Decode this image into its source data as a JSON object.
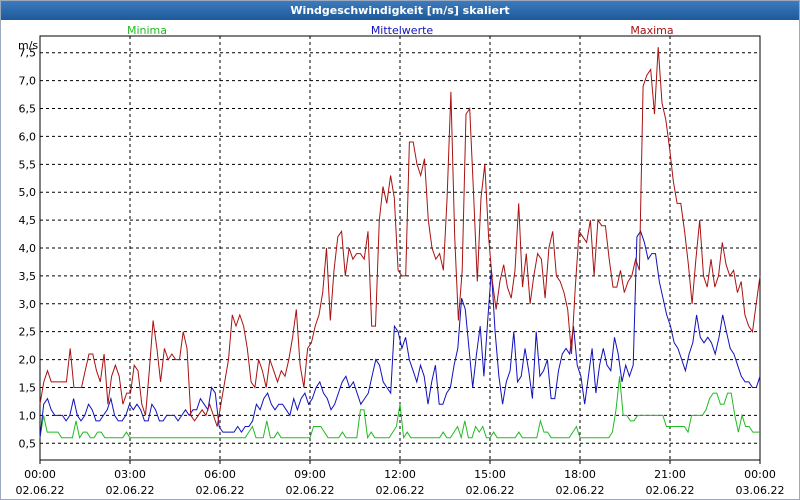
{
  "window": {
    "title": "Windgeschwindigkeit [m/s] skaliert"
  },
  "chart_data": {
    "type": "line",
    "title": "Windgeschwindigkeit [m/s] skaliert",
    "ylabel": "m/s",
    "xlabel": "",
    "ylim": [
      0.2,
      7.8
    ],
    "y_ticks": [
      {
        "v": 0.5,
        "label": "0,5"
      },
      {
        "v": 1.0,
        "label": "1,0"
      },
      {
        "v": 1.5,
        "label": "1,5"
      },
      {
        "v": 2.0,
        "label": "2,0"
      },
      {
        "v": 2.5,
        "label": "2,5"
      },
      {
        "v": 3.0,
        "label": "3,0"
      },
      {
        "v": 3.5,
        "label": "3,5"
      },
      {
        "v": 4.0,
        "label": "4,0"
      },
      {
        "v": 4.5,
        "label": "4,5"
      },
      {
        "v": 5.0,
        "label": "5,0"
      },
      {
        "v": 5.5,
        "label": "5,5"
      },
      {
        "v": 6.0,
        "label": "6,0"
      },
      {
        "v": 6.5,
        "label": "6,5"
      },
      {
        "v": 7.0,
        "label": "7,0"
      },
      {
        "v": 7.5,
        "label": "7,5"
      }
    ],
    "x_ticks": [
      {
        "time": "00:00",
        "date": "02.06.22"
      },
      {
        "time": "03:00",
        "date": "02.06.22"
      },
      {
        "time": "06:00",
        "date": "02.06.22"
      },
      {
        "time": "09:00",
        "date": "02.06.22"
      },
      {
        "time": "12:00",
        "date": "02.06.22"
      },
      {
        "time": "15:00",
        "date": "02.06.22"
      },
      {
        "time": "18:00",
        "date": "02.06.22"
      },
      {
        "time": "21:00",
        "date": "02.06.22"
      },
      {
        "time": "00:00",
        "date": "03.06.22"
      }
    ],
    "grid": true,
    "legend_position": "top",
    "series": [
      {
        "name": "Minima",
        "color": "#22bb22",
        "values": [
          0.6,
          1.0,
          0.7,
          0.7,
          0.7,
          0.7,
          0.6,
          0.6,
          0.6,
          0.6,
          0.9,
          0.6,
          0.7,
          0.7,
          0.6,
          0.6,
          0.7,
          0.7,
          0.6,
          0.6,
          0.6,
          0.6,
          0.6,
          0.6,
          0.7,
          0.6,
          0.6,
          0.6,
          0.6,
          0.6,
          0.6,
          0.6,
          0.6,
          0.6,
          0.6,
          0.6,
          0.6,
          0.6,
          0.6,
          0.6,
          0.6,
          0.6,
          0.6,
          0.6,
          0.6,
          0.6,
          0.6,
          0.6,
          0.6,
          0.6,
          0.6,
          0.6,
          0.6,
          0.6,
          0.6,
          0.6,
          0.6,
          0.6,
          0.7,
          0.8,
          0.6,
          0.6,
          0.6,
          0.9,
          0.6,
          0.6,
          0.7,
          0.6,
          0.6,
          0.6,
          0.6,
          0.6,
          0.6,
          0.6,
          0.6,
          0.6,
          0.8,
          0.8,
          0.8,
          0.7,
          0.6,
          0.6,
          0.6,
          0.6,
          0.7,
          0.6,
          0.6,
          0.6,
          0.6,
          1.1,
          1.1,
          0.6,
          0.7,
          0.6,
          0.6,
          0.6,
          0.6,
          0.6,
          0.7,
          0.8,
          1.2,
          0.6,
          0.7,
          0.6,
          0.6,
          0.6,
          0.6,
          0.6,
          0.6,
          0.6,
          0.6,
          0.6,
          0.7,
          0.6,
          0.6,
          0.7,
          0.8,
          0.6,
          0.9,
          0.6,
          0.6,
          0.8,
          0.7,
          0.8,
          0.6,
          0.6,
          0.7,
          0.6,
          0.6,
          0.6,
          0.6,
          0.6,
          0.6,
          0.7,
          0.6,
          0.6,
          0.6,
          0.6,
          0.6,
          0.9,
          0.7,
          0.7,
          0.6,
          0.6,
          0.6,
          0.6,
          0.6,
          0.6,
          0.7,
          0.8,
          0.6,
          0.6,
          0.6,
          0.6,
          0.6,
          0.6,
          0.6,
          0.6,
          0.6,
          0.7,
          1.1,
          1.7,
          1.0,
          1.0,
          0.9,
          0.9,
          1.0,
          1.0,
          1.0,
          1.0,
          1.0,
          1.0,
          1.0,
          1.0,
          0.8,
          0.8,
          0.8,
          0.8,
          0.8,
          0.8,
          0.7,
          1.0,
          1.0,
          1.0,
          1.0,
          1.1,
          1.3,
          1.4,
          1.4,
          1.2,
          1.2,
          1.4,
          1.4,
          1.0,
          0.7,
          1.0,
          0.8,
          0.8,
          0.7,
          0.7,
          0.7
        ]
      },
      {
        "name": "Mittelwerte",
        "color": "#1111bb",
        "values": [
          0.6,
          1.2,
          1.3,
          1.1,
          1.0,
          1.0,
          1.0,
          0.9,
          1.0,
          1.3,
          1.0,
          0.9,
          1.0,
          1.2,
          1.1,
          0.9,
          0.9,
          1.0,
          1.1,
          1.3,
          1.0,
          0.9,
          0.9,
          1.0,
          1.2,
          1.1,
          1.2,
          1.1,
          0.9,
          0.9,
          1.2,
          1.1,
          0.9,
          0.9,
          1.0,
          1.0,
          1.0,
          0.9,
          1.0,
          1.1,
          1.0,
          1.1,
          1.1,
          1.3,
          1.2,
          1.1,
          1.5,
          1.4,
          0.8,
          0.7,
          0.7,
          0.7,
          0.7,
          0.8,
          0.7,
          0.8,
          0.8,
          0.9,
          1.2,
          1.1,
          1.3,
          1.4,
          1.2,
          1.1,
          1.2,
          1.2,
          1.1,
          1.0,
          1.3,
          1.1,
          1.3,
          1.4,
          1.2,
          1.3,
          1.5,
          1.6,
          1.4,
          1.3,
          1.1,
          1.2,
          1.4,
          1.6,
          1.7,
          1.5,
          1.6,
          1.4,
          1.2,
          1.3,
          1.4,
          1.7,
          2.0,
          1.9,
          1.6,
          1.5,
          1.4,
          2.6,
          2.5,
          2.2,
          2.4,
          2.0,
          1.8,
          1.6,
          1.9,
          1.7,
          1.2,
          1.6,
          1.9,
          1.2,
          1.2,
          1.4,
          1.5,
          1.9,
          2.2,
          3.1,
          2.9,
          2.2,
          1.5,
          2.1,
          2.6,
          1.7,
          2.7,
          3.6,
          2.5,
          1.7,
          1.2,
          1.6,
          1.8,
          2.5,
          1.6,
          1.7,
          2.2,
          1.8,
          1.3,
          2.5,
          1.7,
          1.8,
          2.0,
          1.3,
          1.3,
          1.8,
          2.1,
          2.2,
          2.1,
          2.6,
          1.9,
          1.7,
          1.2,
          1.7,
          2.2,
          1.4,
          1.9,
          2.2,
          1.9,
          1.8,
          2.4,
          2.1,
          1.6,
          1.9,
          1.7,
          1.9,
          4.2,
          4.3,
          4.1,
          3.8,
          3.9,
          3.9,
          3.4,
          3.1,
          2.8,
          2.6,
          2.3,
          2.2,
          2.0,
          1.8,
          2.1,
          2.3,
          2.8,
          2.4,
          2.3,
          2.4,
          2.3,
          2.1,
          2.4,
          2.8,
          2.5,
          2.2,
          2.1,
          1.9,
          1.7,
          1.6,
          1.6,
          1.5,
          1.5,
          1.7
        ]
      },
      {
        "name": "Maxima",
        "color": "#aa1111",
        "values": [
          1.2,
          1.6,
          1.8,
          1.6,
          1.6,
          1.6,
          1.6,
          1.6,
          2.2,
          1.5,
          1.5,
          1.5,
          1.8,
          2.1,
          2.1,
          1.8,
          1.6,
          2.1,
          1.2,
          1.7,
          1.9,
          1.7,
          1.2,
          1.4,
          1.4,
          1.9,
          1.8,
          1.2,
          1.0,
          1.8,
          2.7,
          2.2,
          1.6,
          2.2,
          2.0,
          2.1,
          2.0,
          2.0,
          2.5,
          2.2,
          1.0,
          0.9,
          1.0,
          1.1,
          1.0,
          1.2,
          1.0,
          0.8,
          1.2,
          1.6,
          2.0,
          2.8,
          2.6,
          2.8,
          2.6,
          2.2,
          1.6,
          1.5,
          2.0,
          1.8,
          1.5,
          2.0,
          1.8,
          1.6,
          1.8,
          1.7,
          2.0,
          2.4,
          2.9,
          1.9,
          1.5,
          2.2,
          2.3,
          2.6,
          2.8,
          3.2,
          4.0,
          2.7,
          3.6,
          4.2,
          4.3,
          3.5,
          4.0,
          3.8,
          3.9,
          3.9,
          3.8,
          4.3,
          2.6,
          2.6,
          4.5,
          5.1,
          4.8,
          5.3,
          4.9,
          3.6,
          3.5,
          3.5,
          5.9,
          5.9,
          5.5,
          5.3,
          5.6,
          4.5,
          4.0,
          3.8,
          3.9,
          3.6,
          4.9,
          6.8,
          4.2,
          2.7,
          3.6,
          6.4,
          6.5,
          5.0,
          3.4,
          4.9,
          5.5,
          4.2,
          3.4,
          2.9,
          3.4,
          3.7,
          3.3,
          3.1,
          3.6,
          4.8,
          3.3,
          3.9,
          3.0,
          3.5,
          3.9,
          3.8,
          3.1,
          4.0,
          4.3,
          3.5,
          3.4,
          3.2,
          2.9,
          2.1,
          3.3,
          4.3,
          4.2,
          4.1,
          4.5,
          3.5,
          4.5,
          4.4,
          4.4,
          3.8,
          3.3,
          3.3,
          3.6,
          3.2,
          3.4,
          3.5,
          3.8,
          3.6,
          6.9,
          7.1,
          7.2,
          6.4,
          7.6,
          6.6,
          6.3,
          5.8,
          5.2,
          4.8,
          4.8,
          4.3,
          3.7,
          3.0,
          3.8,
          4.5,
          3.5,
          3.3,
          3.8,
          3.3,
          3.5,
          4.1,
          3.7,
          3.5,
          3.6,
          3.2,
          3.4,
          2.8,
          2.6,
          2.5,
          3.0,
          3.5
        ]
      }
    ]
  }
}
